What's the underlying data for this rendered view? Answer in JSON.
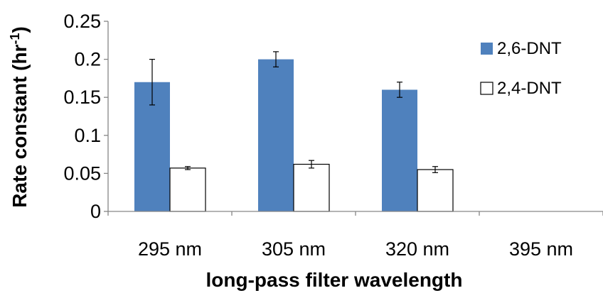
{
  "chart_data": {
    "type": "bar",
    "categories": [
      "295 nm",
      "305 nm",
      "320 nm",
      "395 nm"
    ],
    "series": [
      {
        "name": "2,6-DNT",
        "values": [
          0.17,
          0.2,
          0.16,
          null
        ],
        "errors": [
          0.03,
          0.01,
          0.01,
          null
        ],
        "color": "#4f81bd",
        "stroke": "#4f81bd"
      },
      {
        "name": "2,4-DNT",
        "values": [
          0.057,
          0.062,
          0.055,
          null
        ],
        "errors": [
          0.002,
          0.005,
          0.004,
          null
        ],
        "color": "#ffffff",
        "stroke": "#000000"
      }
    ],
    "xlabel": "long-pass filter wavelength",
    "ylabel": {
      "main": "Rate constant (hr",
      "sup": "-1",
      "close": ")"
    },
    "ylim": [
      0,
      0.25
    ],
    "yticks": [
      "0",
      "0.05",
      "0.1",
      "0.15",
      "0.2",
      "0.25"
    ],
    "ytick_values": [
      0,
      0.05,
      0.1,
      0.15,
      0.2,
      0.25
    ],
    "legend_position": "top-right",
    "grid": false
  }
}
